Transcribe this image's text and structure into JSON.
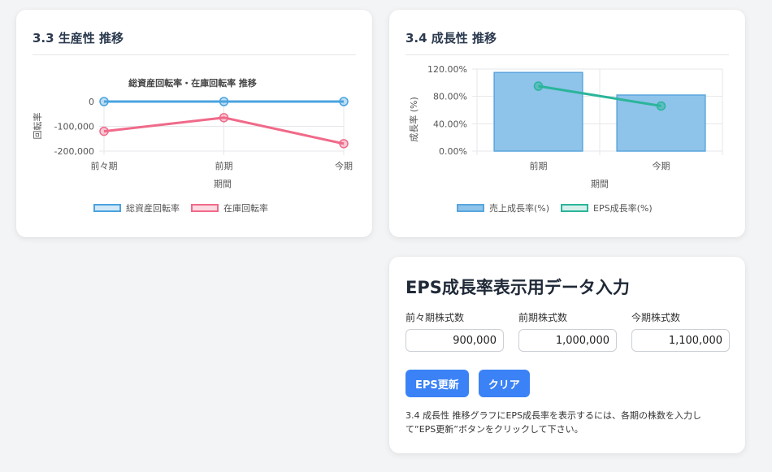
{
  "productivity": {
    "card_title": "3.3 生産性 推移",
    "chart_title": "総資産回転率・在庫回転率 推移",
    "legend": [
      "総資産回転率",
      "在庫回転率"
    ]
  },
  "growth": {
    "card_title": "3.4 成長性 推移",
    "legend": [
      "売上成長率(%)",
      "EPS成長率(%)"
    ]
  },
  "eps_form": {
    "title": "EPS成長率表示用データ入力",
    "fields": [
      {
        "label": "前々期株式数",
        "value": "900,000"
      },
      {
        "label": "前期株式数",
        "value": "1,000,000"
      },
      {
        "label": "今期株式数",
        "value": "1,100,000"
      }
    ],
    "update_button": "EPS更新",
    "clear_button": "クリア",
    "note": "3.4 成長性 推移グラフにEPS成長率を表示するには、各期の株数を入力して“EPS更新”ボタンをクリックして下さい。"
  },
  "colors": {
    "blue": "#4aa3df",
    "pink": "#f06a8a",
    "bar": "#8ec3ea",
    "teal": "#2bb59a",
    "button": "#3b82f6"
  },
  "chart_data": [
    {
      "type": "line",
      "title": "総資産回転率・在庫回転率 推移",
      "categories": [
        "前々期",
        "前期",
        "今期"
      ],
      "xlabel": "期間",
      "ylabel": "回転率",
      "ylim": [
        -200000,
        0
      ],
      "yticks": [
        "0",
        "-100,000",
        "-200,000"
      ],
      "series": [
        {
          "name": "総資産回転率",
          "values": [
            0,
            0,
            0
          ]
        },
        {
          "name": "在庫回転率",
          "values": [
            -120000,
            -65000,
            -170000
          ]
        }
      ],
      "grid": true,
      "legend": "bottom"
    },
    {
      "type": "bar",
      "title": "",
      "categories": [
        "前期",
        "今期"
      ],
      "xlabel": "期間",
      "ylabel": "成長率 (%)",
      "ylim": [
        0,
        120
      ],
      "yticks": [
        "120.00%",
        "80.00%",
        "40.00%",
        "0.00%"
      ],
      "series": [
        {
          "name": "売上成長率(%)",
          "type": "bar",
          "values": [
            115,
            82
          ]
        },
        {
          "name": "EPS成長率(%)",
          "type": "line",
          "values": [
            95,
            66
          ]
        }
      ],
      "grid": true,
      "legend": "bottom"
    }
  ]
}
